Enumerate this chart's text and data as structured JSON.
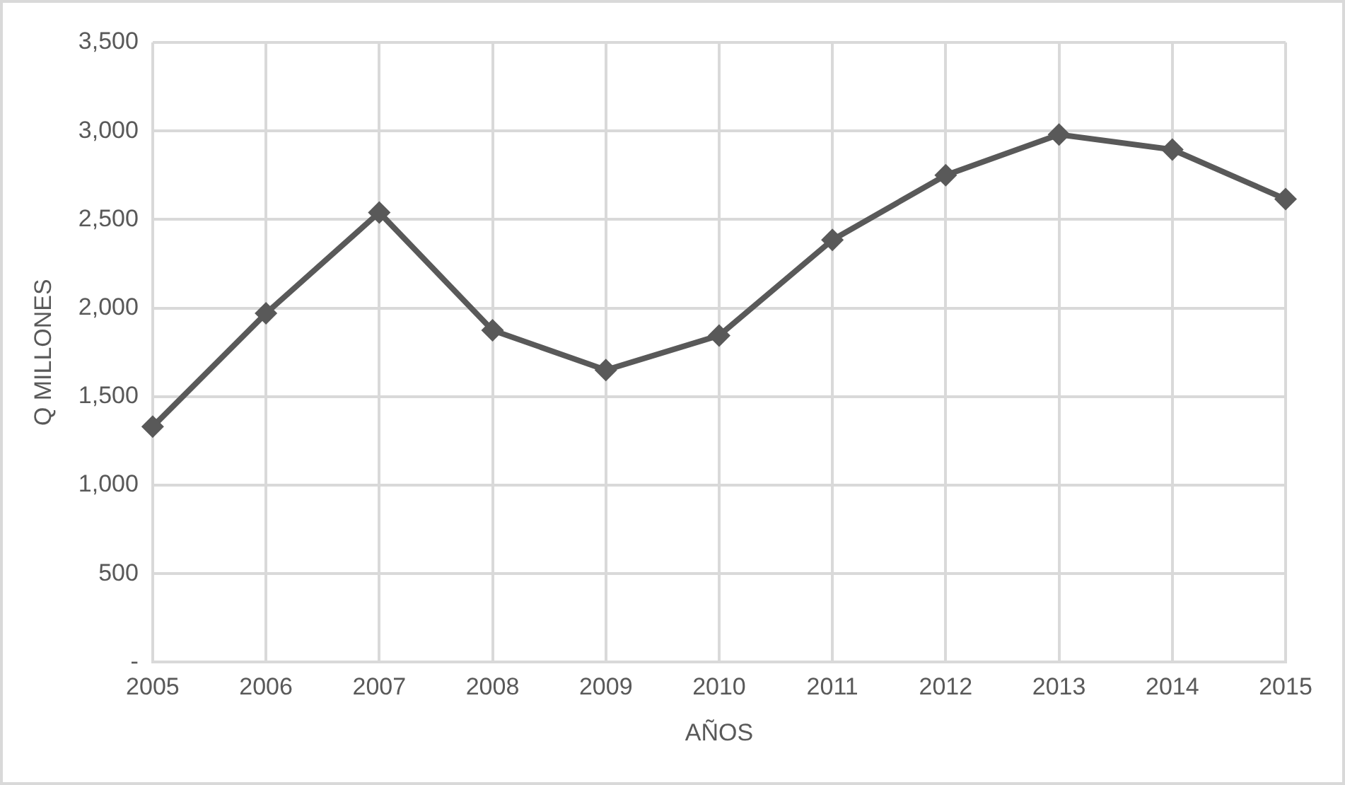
{
  "chart_data": {
    "type": "line",
    "xlabel": "AÑOS",
    "ylabel": "Q MILLONES",
    "categories": [
      "2005",
      "2006",
      "2007",
      "2008",
      "2009",
      "2010",
      "2011",
      "2012",
      "2013",
      "2014",
      "2015"
    ],
    "series": [
      {
        "color": "#595959",
        "values": [
          1330,
          1970,
          2540,
          1875,
          1650,
          1845,
          2385,
          2750,
          2980,
          2895,
          2615
        ]
      }
    ],
    "ylim": [
      0,
      3500
    ],
    "yticks": [
      {
        "value": 0,
        "label": "-"
      },
      {
        "value": 500,
        "label": "500"
      },
      {
        "value": 1000,
        "label": "1,000"
      },
      {
        "value": 1500,
        "label": "1,500"
      },
      {
        "value": 2000,
        "label": "2,000"
      },
      {
        "value": 2500,
        "label": "2,500"
      },
      {
        "value": 3000,
        "label": "3,000"
      },
      {
        "value": 3500,
        "label": "3,500"
      }
    ],
    "grid": true,
    "marker": "diamond",
    "line_style": "solid",
    "legend": false
  }
}
